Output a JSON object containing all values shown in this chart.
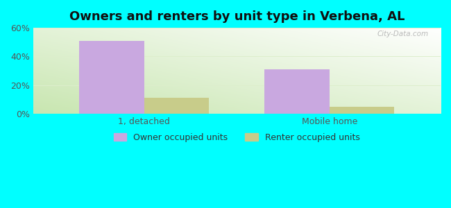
{
  "title": "Owners and renters by unit type in Verbena, AL",
  "categories": [
    "1, detached",
    "Mobile home"
  ],
  "owner_values": [
    51,
    31
  ],
  "renter_values": [
    11,
    5
  ],
  "owner_color": "#c9a8e0",
  "renter_color": "#c8cc8a",
  "ylim": [
    0,
    60
  ],
  "yticks": [
    0,
    20,
    40,
    60
  ],
  "ytick_labels": [
    "0%",
    "20%",
    "40%",
    "60%"
  ],
  "outer_bg": "#00ffff",
  "watermark": "City-Data.com",
  "legend_owner": "Owner occupied units",
  "legend_renter": "Renter occupied units",
  "bar_width": 0.35,
  "title_fontsize": 13,
  "tick_fontsize": 9,
  "legend_fontsize": 9
}
